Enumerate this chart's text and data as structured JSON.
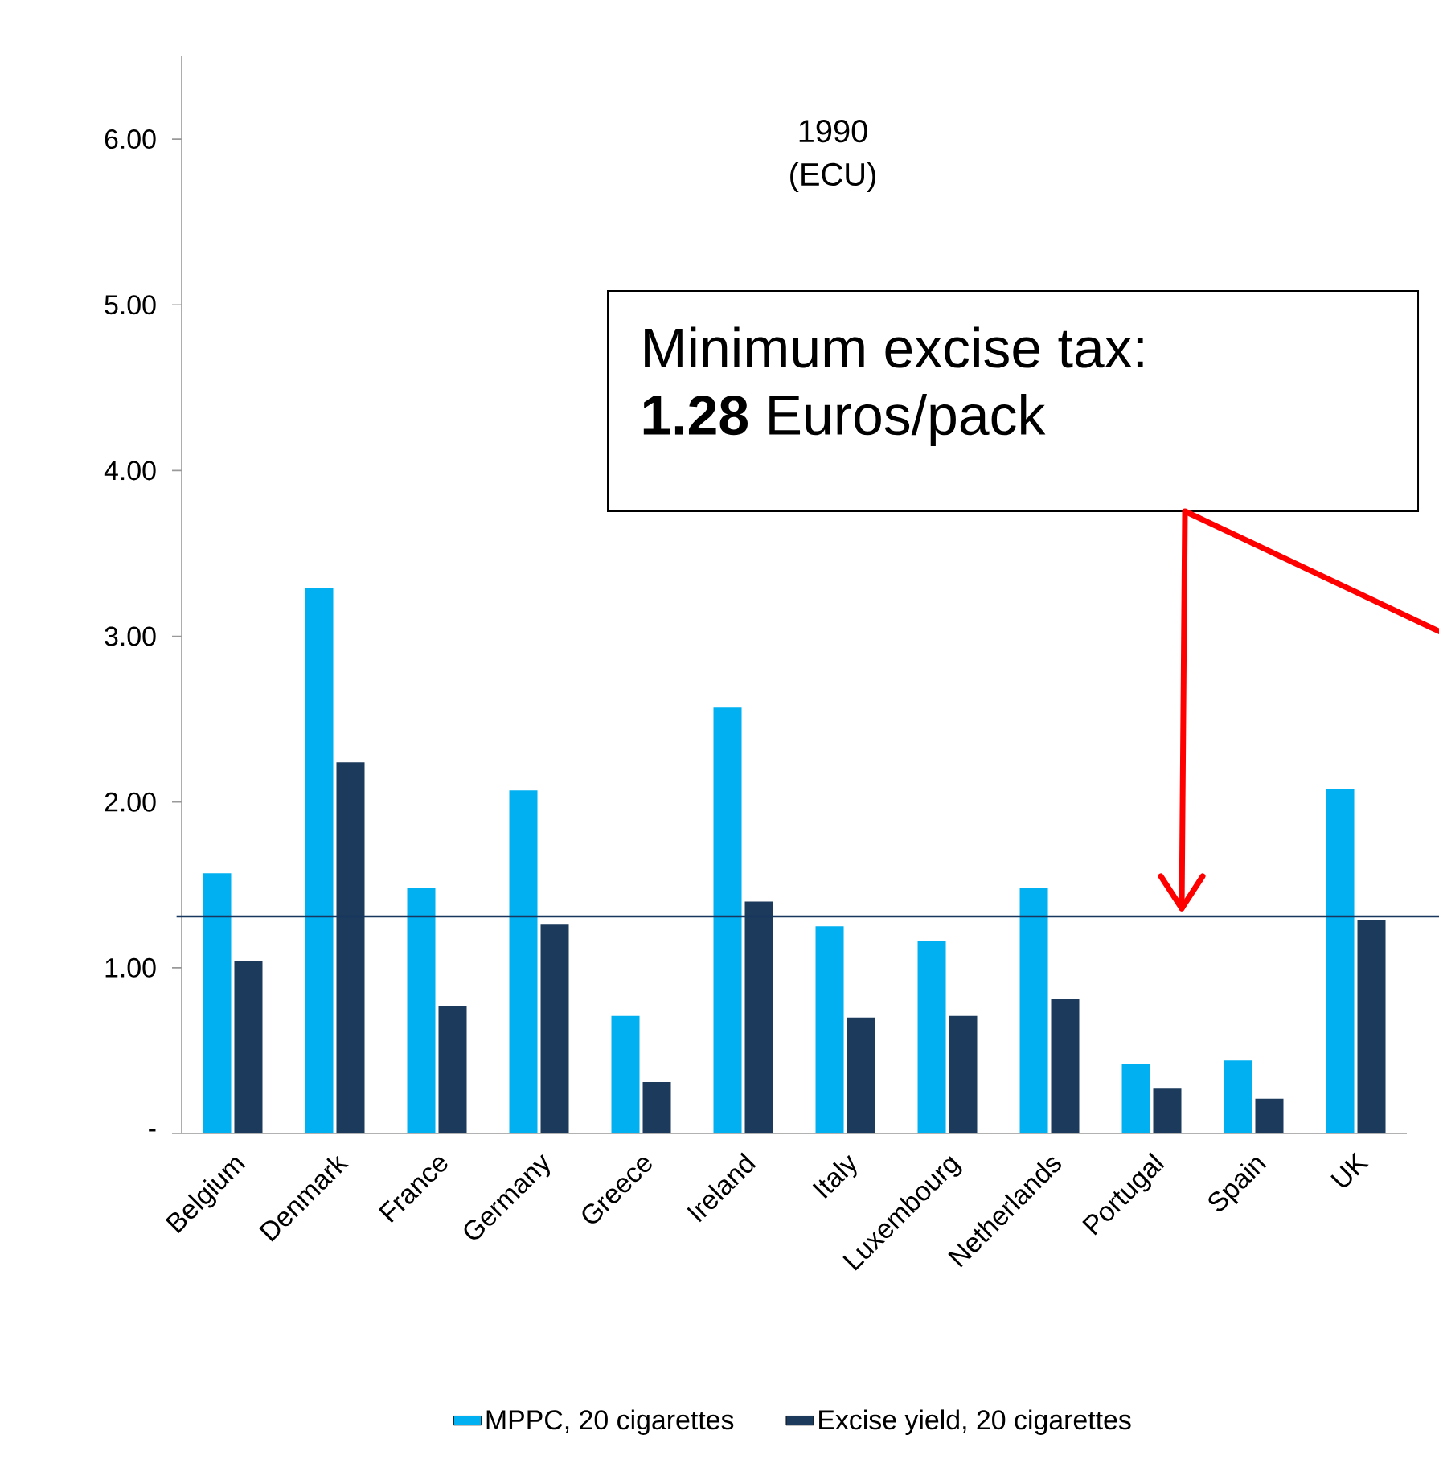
{
  "chart_data": {
    "type": "bar",
    "title": "1990\n(ECU)",
    "categories": [
      "Belgium",
      "Denmark",
      "France",
      "Germany",
      "Greece",
      "Ireland",
      "Italy",
      "Luxembourg",
      "Netherlands",
      "Portugal",
      "Spain",
      "UK"
    ],
    "series": [
      {
        "name": "MPPC, 20 cigarettes",
        "color": "#00b0f0",
        "values": [
          1.57,
          3.29,
          1.48,
          2.07,
          0.71,
          2.57,
          1.25,
          1.16,
          1.48,
          0.42,
          0.44,
          2.08
        ]
      },
      {
        "name": "Excise yield, 20 cigarettes",
        "color": "#1b3a5c",
        "values": [
          1.04,
          2.24,
          0.77,
          1.26,
          0.31,
          1.4,
          0.7,
          0.71,
          0.81,
          0.27,
          0.21,
          1.29
        ]
      }
    ],
    "ylim": [
      0,
      6.5
    ],
    "yticks": [
      {
        "value": 0,
        "label": "-"
      },
      {
        "value": 1,
        "label": "1.00"
      },
      {
        "value": 2,
        "label": "2.00"
      },
      {
        "value": 3,
        "label": "3.00"
      },
      {
        "value": 4,
        "label": "4.00"
      },
      {
        "value": 5,
        "label": "5.00"
      },
      {
        "value": 6,
        "label": "6.00"
      }
    ],
    "ref_lines": [
      {
        "axis": "y",
        "value": 1.31,
        "color": "#17375e"
      }
    ],
    "annotations": [
      "Minimum excise tax:\n**1.28** Euros/pack"
    ],
    "legend": "bottom",
    "grid": false
  }
}
